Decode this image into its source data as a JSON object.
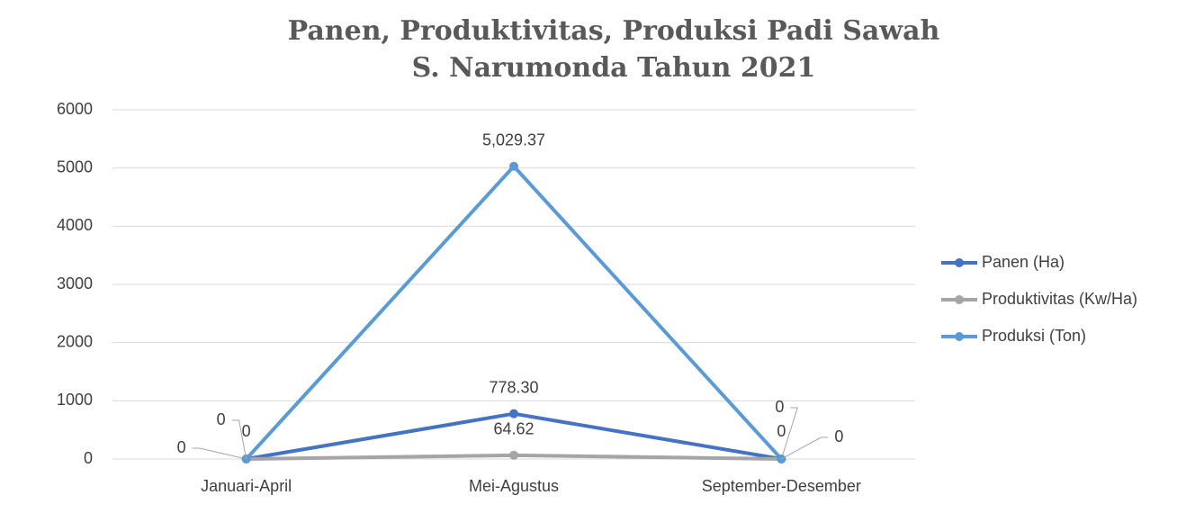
{
  "chart_data": {
    "type": "line",
    "title": [
      "Panen, Produktivitas, Produksi Padi Sawah",
      "S. Narumonda Tahun 2021"
    ],
    "categories": [
      "Januari-April",
      "Mei-Agustus",
      "September-Desember"
    ],
    "series": [
      {
        "name": "Panen (Ha)",
        "color": "#4472c4",
        "values": [
          0,
          778.3,
          0
        ],
        "value_labels": [
          "0",
          "778.30",
          "0"
        ]
      },
      {
        "name": "Produktivitas (Kw/Ha)",
        "color": "#a5a5a5",
        "values": [
          0,
          64.62,
          0
        ],
        "value_labels": [
          "0",
          "64.62",
          "0"
        ]
      },
      {
        "name": "Produksi (Ton)",
        "color": "#5b9bd5",
        "values": [
          0,
          5029.37,
          0
        ],
        "value_labels": [
          "0",
          "5,029.37",
          "0"
        ]
      }
    ],
    "ylim": [
      0,
      6000
    ],
    "yticks": [
      0,
      1000,
      2000,
      3000,
      4000,
      5000,
      6000
    ],
    "grid": true,
    "legend": "right"
  }
}
